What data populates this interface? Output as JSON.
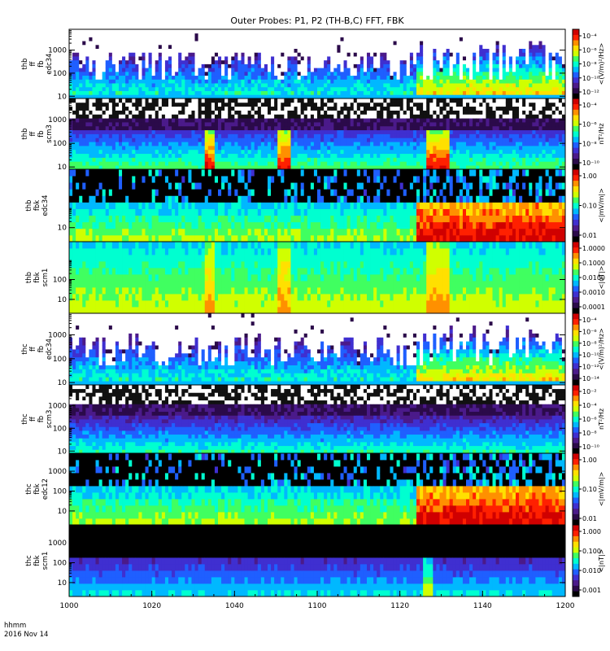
{
  "chart_data": {
    "type": "heatmap",
    "title": "Outer Probes: P1, P2 (TH-B,C) FFT, FBK",
    "x_axis": {
      "tick_labels": [
        "1000",
        "1020",
        "1040",
        "1100",
        "1120",
        "1140",
        "1200"
      ],
      "time_label": "hhmm",
      "date_label": "2016 Nov 14",
      "range": [
        "10:00",
        "12:00"
      ]
    },
    "colormap": [
      "#000000",
      "#2b0a4a",
      "#4b1a8a",
      "#3f2fd0",
      "#1f5fff",
      "#00b8ff",
      "#00ffd0",
      "#40ff60",
      "#d0ff00",
      "#ffe000",
      "#ff9000",
      "#ff2000",
      "#d00000"
    ],
    "panels": [
      {
        "ytitle": [
          "thb",
          "ff",
          "fb",
          "edc34"
        ],
        "yticks": [
          "1000",
          "100",
          "10"
        ],
        "scale": "log",
        "yrange_hz": [
          8,
          8000
        ],
        "colorbar_label": "<(V/m)²/Hz>",
        "colorbar_ticks": [
          "10⁻⁴",
          "10⁻⁶",
          "10⁻⁸",
          "10⁻¹⁰",
          "10⁻¹²"
        ],
        "profile": "spiky",
        "burst_regions": [
          [
            0.7,
            1.0
          ]
        ]
      },
      {
        "ytitle": [
          "thb",
          "ff",
          "fb",
          "scm3"
        ],
        "yticks": [
          "1000",
          "100",
          "10"
        ],
        "scale": "log",
        "yrange_hz": [
          8,
          8000
        ],
        "colorbar_label": "nT²/Hz",
        "colorbar_ticks": [
          "10⁻⁴",
          "10⁻⁶",
          "10⁻⁸",
          "10⁻¹⁰"
        ],
        "profile": "scm",
        "burst_regions": [
          [
            0.27,
            0.29
          ],
          [
            0.42,
            0.44
          ],
          [
            0.72,
            0.76
          ]
        ]
      },
      {
        "ytitle": [
          "thb",
          "fbk",
          "edc34"
        ],
        "yticks": [
          "10"
        ],
        "scale": "log",
        "yrange_hz": [
          2,
          8000
        ],
        "colorbar_label": "<|mV/m|>",
        "colorbar_ticks": [
          "1.00",
          "0.10",
          "0.01"
        ],
        "profile": "fbk_e",
        "burst_regions": [
          [
            0.7,
            1.0
          ]
        ]
      },
      {
        "ytitle": [
          "thb",
          "fbk",
          "scm1"
        ],
        "yticks": [
          "100",
          "10"
        ],
        "scale": "log",
        "yrange_hz": [
          2,
          8000
        ],
        "colorbar_label": "<|nT|>",
        "colorbar_ticks": [
          "1.0000",
          "0.1000",
          "0.0100",
          "0.0010",
          "0.0001"
        ],
        "profile": "fbk_b",
        "burst_regions": [
          [
            0.27,
            0.29
          ],
          [
            0.42,
            0.44
          ],
          [
            0.72,
            0.76
          ]
        ]
      },
      {
        "ytitle": [
          "thc",
          "ff",
          "fb",
          "edc34"
        ],
        "yticks": [
          "1000",
          "100",
          "10"
        ],
        "scale": "log",
        "yrange_hz": [
          8,
          8000
        ],
        "colorbar_label": "<(V/m)²/Hz>",
        "colorbar_ticks": [
          "10⁻⁴",
          "10⁻⁶",
          "10⁻⁸",
          "10⁻¹⁰",
          "10⁻¹²",
          "10⁻¹⁴"
        ],
        "profile": "spiky",
        "burst_regions": [
          [
            0.7,
            1.0
          ]
        ]
      },
      {
        "ytitle": [
          "thc",
          "ff",
          "fb",
          "scm3"
        ],
        "yticks": [
          "1000",
          "100",
          "10"
        ],
        "scale": "log",
        "yrange_hz": [
          8,
          8000
        ],
        "colorbar_label": "nT²/Hz",
        "colorbar_ticks": [
          "10⁻²",
          "10⁻⁴",
          "10⁻⁶",
          "10⁻⁸",
          "10⁻¹⁰"
        ],
        "profile": "scm_c",
        "burst_regions": []
      },
      {
        "ytitle": [
          "thc",
          "fbk",
          "edc12"
        ],
        "yticks": [
          "1000",
          "100",
          "10"
        ],
        "scale": "log",
        "yrange_hz": [
          2,
          8000
        ],
        "colorbar_label": "<|mV/m|>",
        "colorbar_ticks": [
          "1.00",
          "0.10",
          "0.01"
        ],
        "profile": "fbk_e",
        "burst_regions": [
          [
            0.7,
            1.0
          ]
        ]
      },
      {
        "ytitle": [
          "thc",
          "fbk",
          "scm1"
        ],
        "yticks": [
          "1000",
          "100",
          "10"
        ],
        "scale": "log",
        "yrange_hz": [
          2,
          8000
        ],
        "colorbar_label": "<|nT|>",
        "colorbar_ticks": [
          "1.000",
          "0.100",
          "0.010",
          "0.001"
        ],
        "profile": "fbk_b_dark",
        "burst_regions": [
          [
            0.71,
            0.73
          ]
        ]
      }
    ]
  }
}
